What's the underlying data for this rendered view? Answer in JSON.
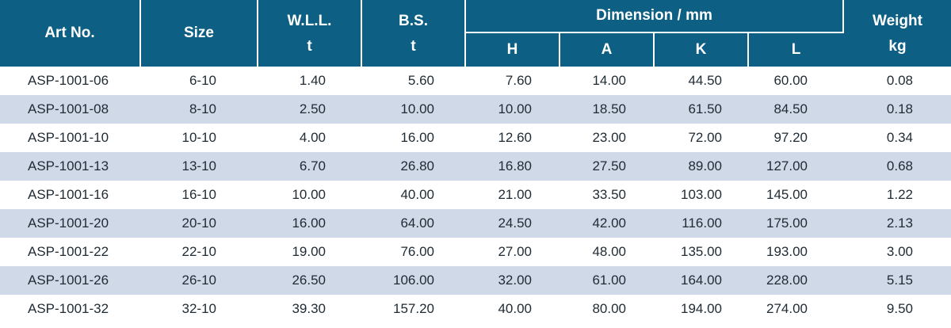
{
  "header": {
    "art_no": "Art No.",
    "size": "Size",
    "wll": "W.L.L.",
    "wll_unit": "t",
    "bs": "B.S.",
    "bs_unit": "t",
    "dimension": "Dimension / mm",
    "dim_h": "H",
    "dim_a": "A",
    "dim_k": "K",
    "dim_l": "L",
    "weight": "Weight",
    "weight_unit": "kg"
  },
  "colors": {
    "header_bg": "#0d5f84",
    "stripe_bg": "#cfd9e8"
  },
  "rows": [
    {
      "art": "ASP-1001-06",
      "size": "6-10",
      "wll": "1.40",
      "bs": "5.60",
      "h": "7.60",
      "a": "14.00",
      "k": "44.50",
      "l": "60.00",
      "wt": "0.08"
    },
    {
      "art": "ASP-1001-08",
      "size": "8-10",
      "wll": "2.50",
      "bs": "10.00",
      "h": "10.00",
      "a": "18.50",
      "k": "61.50",
      "l": "84.50",
      "wt": "0.18"
    },
    {
      "art": "ASP-1001-10",
      "size": "10-10",
      "wll": "4.00",
      "bs": "16.00",
      "h": "12.60",
      "a": "23.00",
      "k": "72.00",
      "l": "97.20",
      "wt": "0.34"
    },
    {
      "art": "ASP-1001-13",
      "size": "13-10",
      "wll": "6.70",
      "bs": "26.80",
      "h": "16.80",
      "a": "27.50",
      "k": "89.00",
      "l": "127.00",
      "wt": "0.68"
    },
    {
      "art": "ASP-1001-16",
      "size": "16-10",
      "wll": "10.00",
      "bs": "40.00",
      "h": "21.00",
      "a": "33.50",
      "k": "103.00",
      "l": "145.00",
      "wt": "1.22"
    },
    {
      "art": "ASP-1001-20",
      "size": "20-10",
      "wll": "16.00",
      "bs": "64.00",
      "h": "24.50",
      "a": "42.00",
      "k": "116.00",
      "l": "175.00",
      "wt": "2.13"
    },
    {
      "art": "ASP-1001-22",
      "size": "22-10",
      "wll": "19.00",
      "bs": "76.00",
      "h": "27.00",
      "a": "48.00",
      "k": "135.00",
      "l": "193.00",
      "wt": "3.00"
    },
    {
      "art": "ASP-1001-26",
      "size": "26-10",
      "wll": "26.50",
      "bs": "106.00",
      "h": "32.00",
      "a": "61.00",
      "k": "164.00",
      "l": "228.00",
      "wt": "5.15"
    },
    {
      "art": "ASP-1001-32",
      "size": "32-10",
      "wll": "39.30",
      "bs": "157.20",
      "h": "40.00",
      "a": "80.00",
      "k": "194.00",
      "l": "274.00",
      "wt": "9.50"
    }
  ]
}
